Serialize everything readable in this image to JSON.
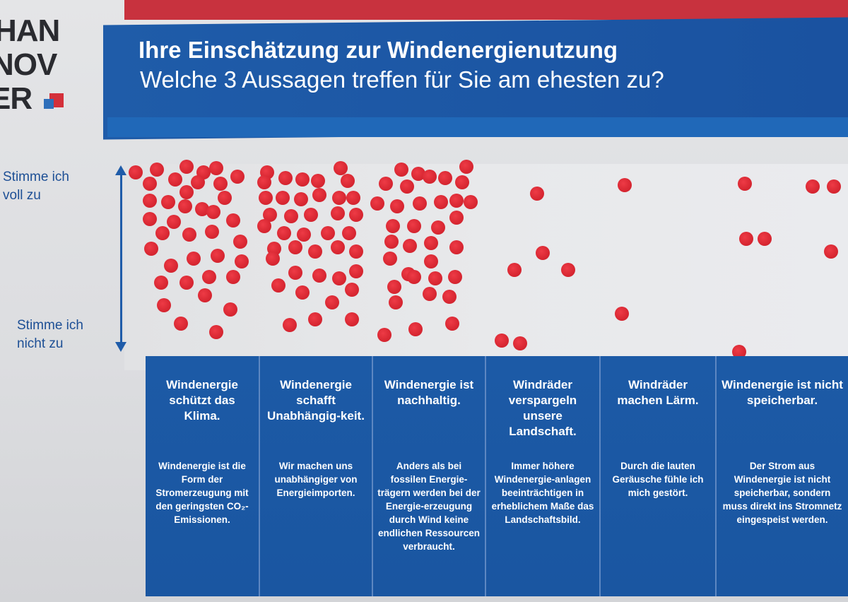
{
  "logo": {
    "lines": [
      "HAN",
      "NOV",
      "ER"
    ]
  },
  "header": {
    "title": "Ihre Einschätzung zur Windenergienutzung",
    "subtitle": "Welche 3 Aussagen treffen für Sie am ehesten zu?"
  },
  "axis": {
    "top_label": "Stimme ich\nvoll zu",
    "bottom_label": "Stimme ich\nnicht zu"
  },
  "columns": [
    {
      "title": "Windenergie schützt das Klima.",
      "description": "Windenergie ist die Form der Stromerzeugung mit den geringsten CO₂-Emissionen."
    },
    {
      "title": "Windenergie schafft Unabhängig-keit.",
      "description": "Wir machen uns unabhängiger von Energieimporten."
    },
    {
      "title": "Windenergie ist nachhaltig.",
      "description": "Anders als bei fossilen Energie-trägern werden bei der Energie-erzeugung durch Wind keine endlichen Ressourcen verbraucht."
    },
    {
      "title": "Windräder verspargeln unsere Landschaft.",
      "description": "Immer höhere Windenergie-anlagen beeinträchtigen in erheblichem Maße das Landschaftsbild."
    },
    {
      "title": "Windräder machen Lärm.",
      "description": "Durch die lauten Geräusche fühle ich mich gestört."
    },
    {
      "title": "Windenergie ist nicht speicherbar.",
      "description": "Der Strom aus Windenergie ist nicht speicherbar, sondern muss direkt ins Stromnetz eingespeist werden."
    }
  ],
  "colors": {
    "banner_blue": "#1f5ca9",
    "dot_red": "#d82732",
    "top_strip_red": "#c8323e"
  }
}
